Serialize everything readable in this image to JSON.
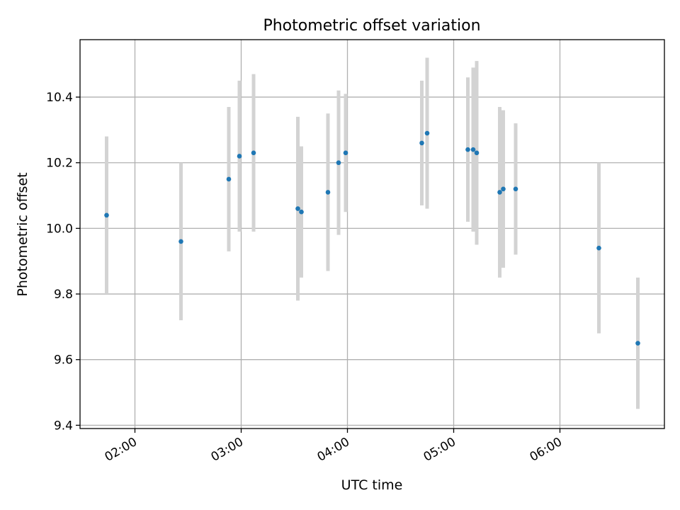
{
  "chart_data": {
    "type": "scatter",
    "title": "Photometric offset variation",
    "xlabel": "UTC time",
    "ylabel": "Photometric offset",
    "xlim": [
      "01:29",
      "06:59"
    ],
    "ylim": [
      9.39,
      10.575
    ],
    "xticks": [
      "02:00",
      "03:00",
      "04:00",
      "05:00",
      "06:00"
    ],
    "yticks": [
      "9.4",
      "9.6",
      "9.8",
      "10.0",
      "10.2",
      "10.4"
    ],
    "grid": true,
    "colors": {
      "point": "#1f77b4",
      "errorbar": "#d3d3d3",
      "grid": "#b0b0b0"
    },
    "points": [
      {
        "x": "01:44",
        "y": 10.04,
        "err": 0.24
      },
      {
        "x": "02:26",
        "y": 9.96,
        "err": 0.24
      },
      {
        "x": "02:53",
        "y": 10.15,
        "err": 0.22
      },
      {
        "x": "02:59",
        "y": 10.22,
        "err": 0.23
      },
      {
        "x": "03:07",
        "y": 10.23,
        "err": 0.24
      },
      {
        "x": "03:32",
        "y": 10.06,
        "err": 0.28
      },
      {
        "x": "03:34",
        "y": 10.05,
        "err": 0.2
      },
      {
        "x": "03:49",
        "y": 10.11,
        "err": 0.24
      },
      {
        "x": "03:55",
        "y": 10.2,
        "err": 0.22
      },
      {
        "x": "03:59",
        "y": 10.23,
        "err": 0.18
      },
      {
        "x": "04:42",
        "y": 10.26,
        "err": 0.19
      },
      {
        "x": "04:45",
        "y": 10.29,
        "err": 0.23
      },
      {
        "x": "05:08",
        "y": 10.24,
        "err": 0.22
      },
      {
        "x": "05:11",
        "y": 10.24,
        "err": 0.25
      },
      {
        "x": "05:13",
        "y": 10.23,
        "err": 0.28
      },
      {
        "x": "05:26",
        "y": 10.11,
        "err": 0.26
      },
      {
        "x": "05:28",
        "y": 10.12,
        "err": 0.24
      },
      {
        "x": "05:35",
        "y": 10.12,
        "err": 0.2
      },
      {
        "x": "06:22",
        "y": 9.94,
        "err": 0.26
      },
      {
        "x": "06:44",
        "y": 9.65,
        "err": 0.2
      }
    ]
  }
}
